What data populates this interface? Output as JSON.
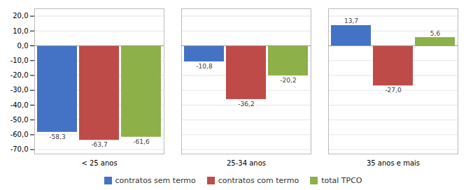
{
  "chart_data": {
    "type": "bar",
    "categories": [
      "< 25 anos",
      "25-34 anos",
      "35 anos e mais"
    ],
    "series": [
      {
        "name": "contratos sem termo",
        "color": "#4472C4",
        "values": [
          -58.3,
          -10.8,
          13.7
        ],
        "value_labels": [
          "-58,3",
          "-10,8",
          "13,7"
        ]
      },
      {
        "name": "contratos com termo",
        "color": "#BE4B48",
        "values": [
          -63.7,
          -36.2,
          -27.0
        ],
        "value_labels": [
          "-63,7",
          "-36,2",
          "-27,0"
        ]
      },
      {
        "name": "total TPCO",
        "color": "#8DB048",
        "values": [
          -61.6,
          -20.2,
          5.6
        ],
        "value_labels": [
          "-61,6",
          "-20,2",
          "5,6"
        ]
      }
    ],
    "ylim": [
      -73,
      25
    ],
    "yticks": [
      {
        "value": -70,
        "label": "-70,0"
      },
      {
        "value": -60,
        "label": "-60,0"
      },
      {
        "value": -50,
        "label": "-50,0"
      },
      {
        "value": -40,
        "label": "-40,0"
      },
      {
        "value": -30,
        "label": "-30,0"
      },
      {
        "value": -20,
        "label": "-20,0"
      },
      {
        "value": -10,
        "label": "-10,0"
      },
      {
        "value": 0,
        "label": "0,0"
      },
      {
        "value": 10,
        "label": "10,0"
      },
      {
        "value": 20,
        "label": "20,0"
      }
    ],
    "grid": true,
    "data_labels": true,
    "legend": "bottom"
  }
}
